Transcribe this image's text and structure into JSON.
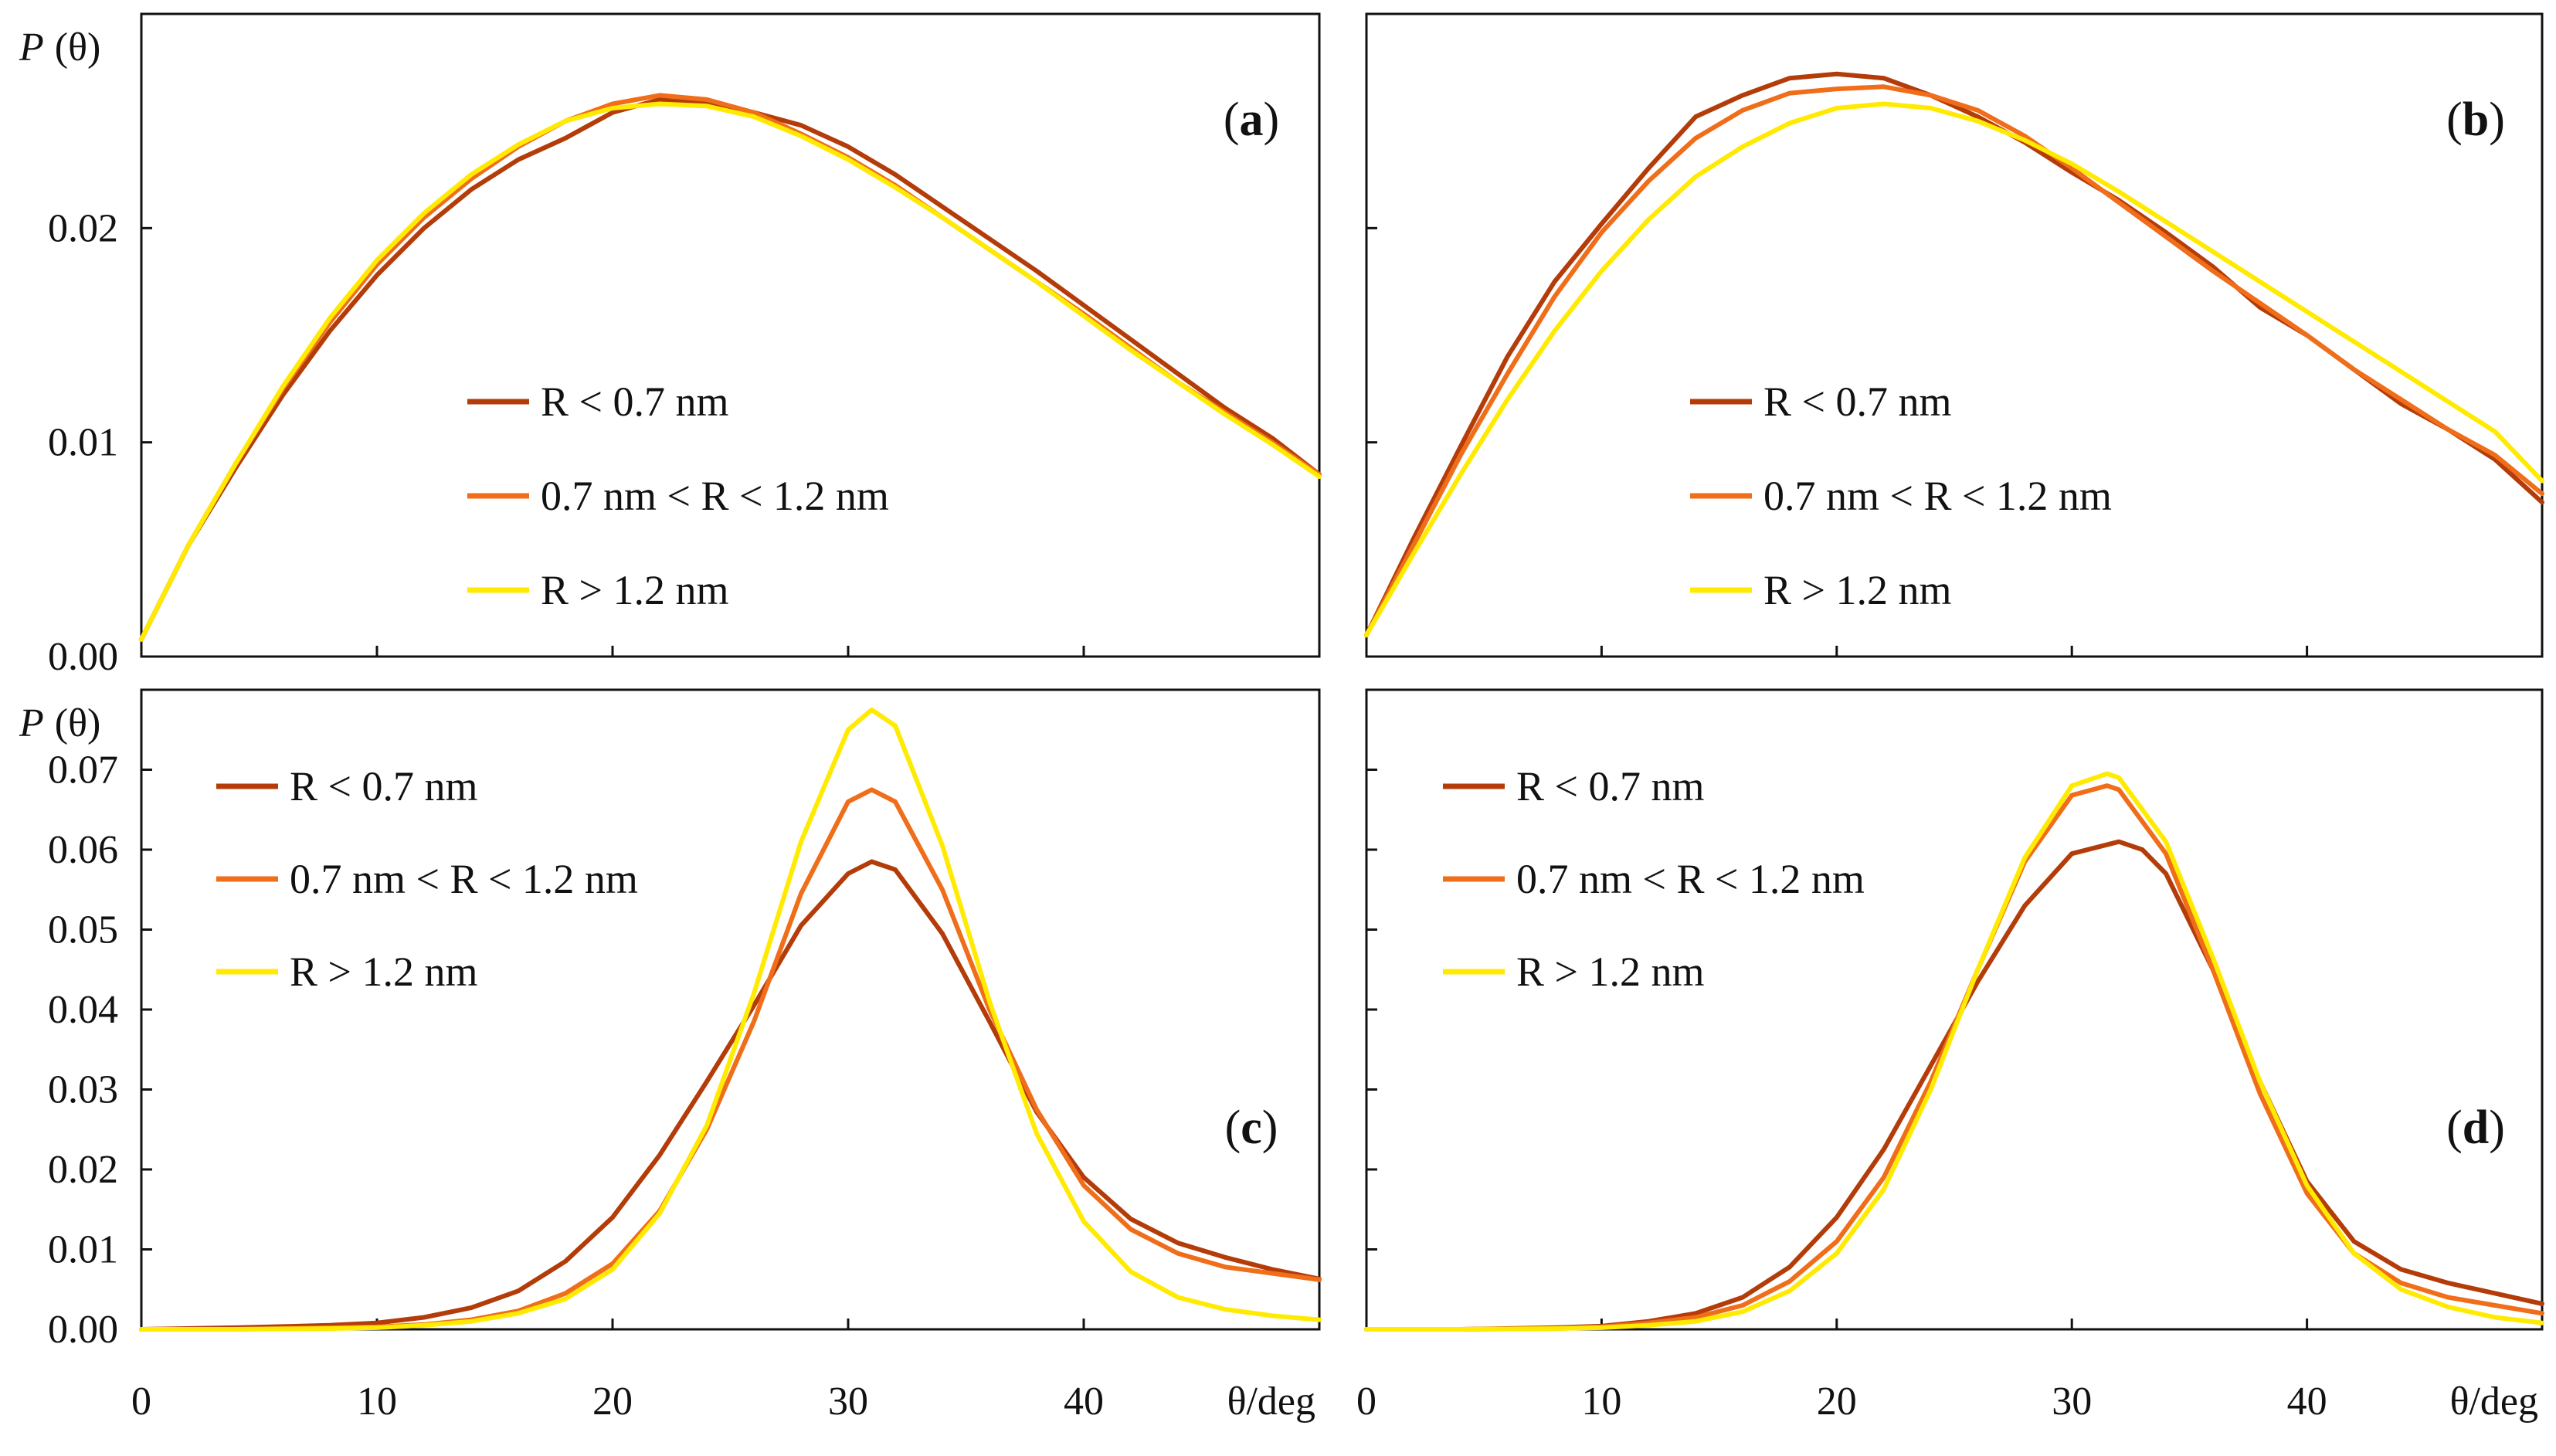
{
  "figure": {
    "x_axis_label": "θ/deg",
    "y_axis_label_p": "P",
    "y_axis_label_theta": "(θ)"
  },
  "colors": {
    "small": "#b33c09",
    "medium": "#f06d1a",
    "large": "#ffea00",
    "axis": "#111111"
  },
  "chart_data": [
    {
      "id": "a",
      "type": "line",
      "panel_label_open": "(",
      "panel_label_letter": "a",
      "panel_label_close": ")",
      "xlabel": "",
      "ylabel_p": "P",
      "ylabel_theta": "(θ)",
      "xlim": [
        0,
        50
      ],
      "ylim": [
        0,
        0.03
      ],
      "y_ticks": [
        "0.00",
        "0.01",
        "0.02"
      ],
      "y_tick_values": [
        0,
        0.01,
        0.02
      ],
      "x_ticks": [],
      "x_tick_values": [
        10,
        20,
        30,
        40
      ],
      "legend": [
        "R < 0.7 nm",
        "0.7 nm < R < 1.2 nm",
        "R > 1.2 nm"
      ],
      "legend_position": "center-left",
      "series": [
        {
          "name": "R < 0.7 nm",
          "color_key": "small",
          "x": [
            0,
            2,
            4,
            6,
            8,
            10,
            12,
            14,
            16,
            18,
            20,
            22,
            24,
            26,
            28,
            30,
            32,
            34,
            36,
            38,
            40,
            42,
            44,
            46,
            48,
            50
          ],
          "y": [
            0.0008,
            0.0052,
            0.0088,
            0.0122,
            0.0152,
            0.0178,
            0.02,
            0.0218,
            0.0232,
            0.0242,
            0.0254,
            0.026,
            0.0258,
            0.0254,
            0.0248,
            0.0238,
            0.0225,
            0.021,
            0.0195,
            0.018,
            0.0164,
            0.0148,
            0.0132,
            0.0116,
            0.0102,
            0.0085
          ]
        },
        {
          "name": "0.7 nm < R < 1.2 nm",
          "color_key": "medium",
          "x": [
            0,
            2,
            4,
            6,
            8,
            10,
            12,
            14,
            16,
            18,
            20,
            22,
            24,
            26,
            28,
            30,
            32,
            34,
            36,
            38,
            40,
            42,
            44,
            46,
            48,
            50
          ],
          "y": [
            0.0008,
            0.0052,
            0.009,
            0.0125,
            0.0156,
            0.0183,
            0.0205,
            0.0223,
            0.0238,
            0.025,
            0.0258,
            0.0262,
            0.026,
            0.0254,
            0.0244,
            0.0233,
            0.022,
            0.0205,
            0.019,
            0.0175,
            0.016,
            0.0144,
            0.0128,
            0.0114,
            0.01,
            0.0085
          ]
        },
        {
          "name": "R > 1.2 nm",
          "color_key": "large",
          "x": [
            0,
            2,
            4,
            6,
            8,
            10,
            12,
            14,
            16,
            18,
            20,
            22,
            24,
            26,
            28,
            30,
            32,
            34,
            36,
            38,
            40,
            42,
            44,
            46,
            48,
            50
          ],
          "y": [
            0.0008,
            0.0052,
            0.009,
            0.0126,
            0.0158,
            0.0185,
            0.0207,
            0.0225,
            0.0239,
            0.025,
            0.0256,
            0.0258,
            0.0257,
            0.0252,
            0.0243,
            0.0232,
            0.0219,
            0.0205,
            0.019,
            0.0175,
            0.0159,
            0.0143,
            0.0128,
            0.0113,
            0.0099,
            0.0084
          ]
        }
      ]
    },
    {
      "id": "b",
      "type": "line",
      "panel_label_open": "(",
      "panel_label_letter": "b",
      "panel_label_close": ")",
      "xlabel": "",
      "ylabel_p": "",
      "ylabel_theta": "",
      "xlim": [
        0,
        50
      ],
      "ylim": [
        0,
        0.03
      ],
      "y_ticks": [],
      "y_tick_values": [
        0,
        0.01,
        0.02
      ],
      "x_ticks": [],
      "x_tick_values": [
        10,
        20,
        30,
        40
      ],
      "legend": [
        "R < 0.7 nm",
        "0.7 nm < R < 1.2 nm",
        "R > 1.2 nm"
      ],
      "legend_position": "center",
      "series": [
        {
          "name": "R < 0.7 nm",
          "color_key": "small",
          "x": [
            0,
            2,
            4,
            6,
            8,
            10,
            12,
            14,
            16,
            18,
            20,
            22,
            24,
            26,
            28,
            30,
            32,
            34,
            36,
            38,
            40,
            42,
            44,
            46,
            48,
            50
          ],
          "y": [
            0.001,
            0.0055,
            0.0098,
            0.014,
            0.0175,
            0.0202,
            0.0228,
            0.0252,
            0.0262,
            0.027,
            0.0272,
            0.027,
            0.0262,
            0.0252,
            0.024,
            0.0226,
            0.0213,
            0.0198,
            0.0182,
            0.0163,
            0.015,
            0.0134,
            0.0118,
            0.0106,
            0.0092,
            0.0072
          ]
        },
        {
          "name": "0.7 nm < R < 1.2 nm",
          "color_key": "medium",
          "x": [
            0,
            2,
            4,
            6,
            8,
            10,
            12,
            14,
            16,
            18,
            20,
            22,
            24,
            26,
            28,
            30,
            32,
            34,
            36,
            38,
            40,
            42,
            44,
            46,
            48,
            50
          ],
          "y": [
            0.001,
            0.0052,
            0.0094,
            0.0132,
            0.0168,
            0.0198,
            0.0222,
            0.0242,
            0.0255,
            0.0263,
            0.0265,
            0.0266,
            0.0262,
            0.0255,
            0.0243,
            0.0228,
            0.0212,
            0.0196,
            0.018,
            0.0165,
            0.015,
            0.0134,
            0.012,
            0.0106,
            0.0094,
            0.0076
          ]
        },
        {
          "name": "R > 1.2 nm",
          "color_key": "large",
          "x": [
            0,
            2,
            4,
            6,
            8,
            10,
            12,
            14,
            16,
            18,
            20,
            22,
            24,
            26,
            28,
            30,
            32,
            34,
            36,
            38,
            40,
            42,
            44,
            46,
            48,
            50
          ],
          "y": [
            0.001,
            0.0048,
            0.0085,
            0.012,
            0.0152,
            0.018,
            0.0204,
            0.0224,
            0.0238,
            0.0249,
            0.0256,
            0.0258,
            0.0256,
            0.025,
            0.0241,
            0.023,
            0.0217,
            0.0203,
            0.0189,
            0.0175,
            0.0161,
            0.0147,
            0.0133,
            0.0119,
            0.0105,
            0.0082
          ]
        }
      ]
    },
    {
      "id": "c",
      "type": "line",
      "panel_label_open": "(",
      "panel_label_letter": "c",
      "panel_label_close": ")",
      "xlabel": "θ/deg",
      "ylabel_p": "P",
      "ylabel_theta": "(θ)",
      "xlim": [
        0,
        50
      ],
      "ylim": [
        0,
        0.08
      ],
      "y_ticks": [
        "0.00",
        "0.01",
        "0.02",
        "0.03",
        "0.04",
        "0.05",
        "0.06",
        "0.07"
      ],
      "y_tick_values": [
        0,
        0.01,
        0.02,
        0.03,
        0.04,
        0.05,
        0.06,
        0.07
      ],
      "x_ticks": [
        "0",
        "10",
        "20",
        "30",
        "40"
      ],
      "x_tick_values": [
        0,
        10,
        20,
        30,
        40
      ],
      "legend": [
        "R < 0.7 nm",
        "0.7 nm < R < 1.2 nm",
        "R > 1.2 nm"
      ],
      "legend_position": "top-left",
      "series": [
        {
          "name": "R < 0.7 nm",
          "color_key": "small",
          "x": [
            0,
            4,
            8,
            10,
            12,
            14,
            16,
            18,
            20,
            22,
            24,
            26,
            28,
            30,
            31,
            32,
            34,
            36,
            38,
            40,
            42,
            44,
            46,
            48,
            50
          ],
          "y": [
            0.0,
            0.0002,
            0.0005,
            0.0008,
            0.0015,
            0.0027,
            0.0048,
            0.0085,
            0.014,
            0.0218,
            0.031,
            0.0405,
            0.0505,
            0.057,
            0.0585,
            0.0575,
            0.0495,
            0.0385,
            0.0272,
            0.019,
            0.0138,
            0.0108,
            0.009,
            0.0075,
            0.0063
          ]
        },
        {
          "name": "0.7 nm < R < 1.2 nm",
          "color_key": "medium",
          "x": [
            0,
            4,
            8,
            10,
            12,
            14,
            16,
            18,
            20,
            22,
            24,
            26,
            28,
            30,
            31,
            32,
            34,
            36,
            38,
            40,
            42,
            44,
            46,
            48,
            50
          ],
          "y": [
            0.0,
            0.0,
            0.0002,
            0.0003,
            0.0006,
            0.0012,
            0.0023,
            0.0045,
            0.0082,
            0.0148,
            0.025,
            0.0385,
            0.0545,
            0.066,
            0.0675,
            0.066,
            0.055,
            0.04,
            0.0275,
            0.018,
            0.0125,
            0.0095,
            0.0078,
            0.007,
            0.0062
          ]
        },
        {
          "name": "R > 1.2 nm",
          "color_key": "large",
          "x": [
            0,
            4,
            8,
            10,
            12,
            14,
            16,
            18,
            20,
            22,
            24,
            26,
            28,
            30,
            31,
            32,
            34,
            36,
            38,
            40,
            42,
            44,
            46,
            48,
            50
          ],
          "y": [
            0.0,
            0.0,
            0.0001,
            0.0002,
            0.0005,
            0.001,
            0.002,
            0.0038,
            0.0075,
            0.0145,
            0.0255,
            0.042,
            0.061,
            0.075,
            0.0775,
            0.0755,
            0.0605,
            0.041,
            0.0245,
            0.0135,
            0.0072,
            0.004,
            0.0025,
            0.0017,
            0.0012
          ]
        }
      ]
    },
    {
      "id": "d",
      "type": "line",
      "panel_label_open": "(",
      "panel_label_letter": "d",
      "panel_label_close": ")",
      "xlabel": "θ/deg",
      "ylabel_p": "",
      "ylabel_theta": "",
      "xlim": [
        0,
        50
      ],
      "ylim": [
        0,
        0.08
      ],
      "y_ticks": [],
      "y_tick_values": [
        0,
        0.01,
        0.02,
        0.03,
        0.04,
        0.05,
        0.06,
        0.07
      ],
      "x_ticks": [
        "0",
        "10",
        "20",
        "30",
        "40"
      ],
      "x_tick_values": [
        0,
        10,
        20,
        30,
        40
      ],
      "legend": [
        "R < 0.7 nm",
        "0.7 nm < R < 1.2 nm",
        "R > 1.2 nm"
      ],
      "legend_position": "top-left",
      "series": [
        {
          "name": "R < 0.7 nm",
          "color_key": "small",
          "x": [
            0,
            4,
            8,
            10,
            12,
            14,
            16,
            18,
            20,
            22,
            24,
            26,
            28,
            30,
            32,
            33,
            34,
            36,
            38,
            40,
            42,
            44,
            46,
            48,
            50
          ],
          "y": [
            0.0,
            0.0,
            0.0002,
            0.0004,
            0.001,
            0.002,
            0.004,
            0.0078,
            0.014,
            0.0225,
            0.033,
            0.0435,
            0.053,
            0.0595,
            0.061,
            0.06,
            0.057,
            0.045,
            0.031,
            0.0185,
            0.011,
            0.0075,
            0.0058,
            0.0045,
            0.0032
          ]
        },
        {
          "name": "0.7 nm < R < 1.2 nm",
          "color_key": "medium",
          "x": [
            0,
            4,
            8,
            10,
            12,
            14,
            16,
            18,
            20,
            22,
            24,
            26,
            28,
            30,
            31.5,
            32,
            34,
            36,
            38,
            40,
            42,
            44,
            46,
            48,
            50
          ],
          "y": [
            0.0,
            0.0,
            0.0001,
            0.0003,
            0.0008,
            0.0015,
            0.003,
            0.006,
            0.011,
            0.019,
            0.031,
            0.045,
            0.0585,
            0.0668,
            0.068,
            0.0675,
            0.0595,
            0.045,
            0.0295,
            0.017,
            0.0095,
            0.0058,
            0.004,
            0.003,
            0.002
          ]
        },
        {
          "name": "R > 1.2 nm",
          "color_key": "large",
          "x": [
            0,
            4,
            8,
            10,
            12,
            14,
            16,
            18,
            20,
            22,
            24,
            26,
            28,
            30,
            31.5,
            32,
            34,
            36,
            38,
            40,
            42,
            44,
            46,
            48,
            50
          ],
          "y": [
            0.0,
            0.0,
            0.0001,
            0.0002,
            0.0005,
            0.001,
            0.0022,
            0.0048,
            0.0095,
            0.0175,
            0.03,
            0.045,
            0.059,
            0.068,
            0.0695,
            0.069,
            0.061,
            0.0465,
            0.031,
            0.018,
            0.0095,
            0.005,
            0.0028,
            0.0015,
            0.0008
          ]
        }
      ]
    }
  ]
}
